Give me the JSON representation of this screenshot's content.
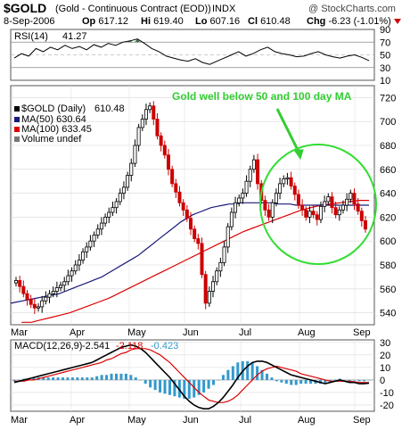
{
  "header": {
    "symbol": "$GOLD",
    "description": "(Gold - Continuous Contract (EOD))",
    "exchange": "INDX",
    "watermark": "@ StockCharts.com",
    "date": "8-Sep-2006",
    "op_label": "Op",
    "op_value": "617.12",
    "hi_label": "Hi",
    "hi_value": "619.40",
    "lo_label": "Lo",
    "lo_value": "607.16",
    "cl_label": "Cl",
    "cl_value": "610.48",
    "chg_label": "Chg",
    "chg_value": "-6.23 (-1.01%)"
  },
  "colors": {
    "price_up": "#000000",
    "price_down": "#cc0000",
    "ma50": "#1a1a7a",
    "ma100": "#dd0000",
    "annotation": "#33cc33",
    "histogram": "#3399cc",
    "macd_line": "#000000",
    "signal_line": "#dd0000"
  },
  "chart_data": [
    {
      "type": "line",
      "panel": "RSI",
      "label": "RSI(14)",
      "last_value": "41.27",
      "y_ticks": [
        "90",
        "70",
        "50",
        "30",
        "10"
      ],
      "reference_levels": [
        70,
        30
      ],
      "series": [
        {
          "name": "RSI(14)",
          "values": [
            45,
            52,
            48,
            60,
            55,
            62,
            58,
            65,
            60,
            63,
            58,
            66,
            62,
            68,
            65,
            70,
            72,
            75,
            68,
            60,
            55,
            48,
            45,
            42,
            40,
            44,
            38,
            35,
            40,
            45,
            50,
            55,
            48,
            52,
            58,
            62,
            55,
            52,
            50,
            47,
            48,
            52,
            55,
            50,
            47,
            45,
            48,
            50,
            46,
            41
          ]
        }
      ]
    },
    {
      "type": "candlestick",
      "panel": "Price",
      "label": "$GOLD (Daily)",
      "last_value": "610.48",
      "legend": [
        {
          "label": "MA(50)",
          "value": "630.64",
          "color": "#1a1a7a"
        },
        {
          "label": "MA(100)",
          "value": "633.45",
          "color": "#dd0000"
        },
        {
          "label": "Volume undef",
          "value": "",
          "color": "#777777"
        }
      ],
      "y_ticks": [
        "720",
        "700",
        "680",
        "660",
        "640",
        "620",
        "600",
        "580",
        "560",
        "540"
      ],
      "x_ticks": [
        "Mar",
        "Apr",
        "May",
        "Jun",
        "Jul",
        "Aug",
        "Sep"
      ],
      "ylim": [
        530,
        730
      ],
      "closes": [
        567,
        562,
        556,
        551,
        547,
        544,
        545,
        550,
        553,
        556,
        558,
        561,
        563,
        566,
        571,
        575,
        580,
        584,
        591,
        595,
        600,
        605,
        610,
        615,
        620,
        624,
        628,
        633,
        640,
        645,
        655,
        665,
        680,
        695,
        702,
        710,
        713,
        702,
        688,
        680,
        672,
        660,
        648,
        641,
        632,
        626,
        619,
        610,
        602,
        598,
        572,
        548,
        558,
        566,
        575,
        582,
        595,
        612,
        624,
        632,
        636,
        640,
        650,
        660,
        668,
        648,
        634,
        626,
        620,
        632,
        640,
        648,
        652,
        653,
        646,
        639,
        630,
        626,
        620,
        625,
        622,
        618,
        629,
        633,
        637,
        628,
        622,
        626,
        630,
        635,
        640,
        631,
        625,
        617,
        610
      ],
      "ma50": [
        548,
        549,
        550,
        551,
        552,
        553,
        554,
        555,
        556,
        558,
        560,
        562,
        564,
        566,
        568,
        570,
        573,
        576,
        579,
        582,
        585,
        588,
        592,
        596,
        600,
        604,
        608,
        612,
        616,
        619,
        622,
        624,
        626,
        628,
        629,
        630,
        631,
        631,
        632,
        632,
        632,
        632,
        632,
        632,
        631,
        631,
        631,
        630,
        630,
        630,
        630,
        630,
        630,
        630,
        630,
        630,
        630,
        630,
        630,
        630
      ],
      "ma100": [
        532,
        532,
        534,
        536,
        538,
        540,
        543,
        546,
        549,
        552,
        556,
        560,
        564,
        568,
        572,
        576,
        580,
        584,
        588,
        592,
        596,
        600,
        604,
        608,
        611,
        614,
        617,
        620,
        623,
        626,
        628,
        630,
        631,
        632,
        633,
        634,
        634
      ],
      "annotation": "Gold well below 50 and 100 day MA"
    },
    {
      "type": "line",
      "panel": "MACD",
      "label": "MACD(12,26,9)",
      "values_text": [
        "-2.541",
        "-2.118",
        "-0.423"
      ],
      "y_ticks": [
        "30",
        "20",
        "10",
        "0",
        "-10",
        "-20"
      ],
      "x_ticks": [
        "Mar",
        "Apr",
        "May",
        "Jun",
        "Jul",
        "Aug",
        "Sep"
      ],
      "ylim": [
        -25,
        32
      ],
      "series": [
        {
          "name": "MACD",
          "values": [
            -2,
            -1,
            0,
            1,
            2,
            3,
            4,
            5,
            6,
            7,
            8,
            9,
            10,
            11,
            12,
            13,
            14,
            16,
            18,
            20,
            22,
            24,
            26,
            27,
            28,
            27,
            25,
            22,
            18,
            14,
            10,
            6,
            2,
            -3,
            -8,
            -13,
            -17,
            -20,
            -22,
            -23,
            -23,
            -21,
            -18,
            -14,
            -9,
            -4,
            2,
            7,
            11,
            14,
            15,
            15,
            14,
            12,
            10,
            8,
            6,
            4,
            3,
            2,
            1,
            0,
            -1,
            -2,
            -3,
            -2,
            -1,
            0,
            -1,
            -2,
            -2,
            -3,
            -3,
            -2.5
          ]
        },
        {
          "name": "Signal",
          "values": [
            -1,
            -1,
            -1,
            0,
            0,
            1,
            2,
            3,
            4,
            5,
            6,
            7,
            8,
            9,
            10,
            11,
            12,
            13,
            14,
            16,
            17,
            19,
            21,
            22,
            24,
            25,
            25,
            25,
            24,
            22,
            20,
            17,
            14,
            10,
            6,
            2,
            -2,
            -6,
            -10,
            -13,
            -16,
            -17,
            -18,
            -18,
            -17,
            -15,
            -12,
            -8,
            -4,
            0,
            4,
            7,
            9,
            10,
            11,
            10,
            9,
            8,
            7,
            5,
            4,
            3,
            2,
            1,
            0,
            -1,
            -1,
            -1,
            -1,
            -1,
            -1.5,
            -2,
            -2,
            -2.1
          ]
        }
      ]
    }
  ]
}
